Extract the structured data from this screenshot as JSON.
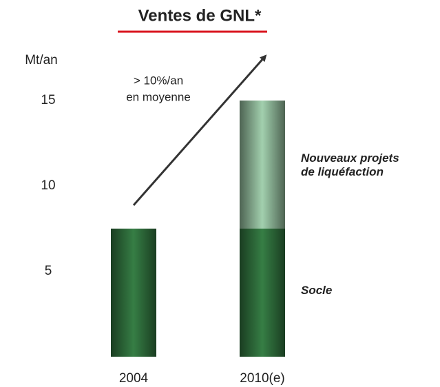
{
  "chart_data": {
    "type": "stacked-bar",
    "title": "Ventes de GNL*",
    "ylabel": "Mt/an",
    "annotation": [
      "> 10%/an",
      "en moyenne"
    ],
    "categories": [
      "2004",
      "2010(e)"
    ],
    "series": [
      {
        "name": "Socle",
        "color": "#2f6e3c",
        "values": [
          7.5,
          7.5
        ]
      },
      {
        "name": "Nouveaux projets de liquéfaction",
        "color": "#8db597",
        "values": [
          null,
          7.5
        ]
      }
    ],
    "ylim": [
      0,
      15
    ],
    "yticks": [
      5,
      10,
      15
    ],
    "grid": false
  }
}
